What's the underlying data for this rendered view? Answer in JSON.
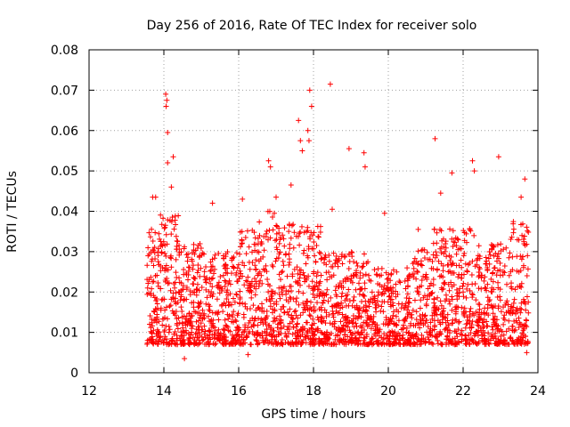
{
  "chart_data": {
    "type": "scatter",
    "title": "Day 256 of 2016, Rate Of TEC Index for receiver solo",
    "xlabel": "GPS time / hours",
    "ylabel": "ROTI / TECUs",
    "xlim": [
      12,
      24
    ],
    "ylim": [
      0,
      0.08
    ],
    "xticks": [
      "12",
      "14",
      "16",
      "18",
      "20",
      "22",
      "24"
    ],
    "yticks": [
      "0",
      "0.01",
      "0.02",
      "0.03",
      "0.04",
      "0.05",
      "0.06",
      "0.07",
      "0.08"
    ],
    "xtick_values": [
      12,
      14,
      16,
      18,
      20,
      22,
      24
    ],
    "ytick_values": [
      0,
      0.01,
      0.02,
      0.03,
      0.04,
      0.05,
      0.06,
      0.07,
      0.08
    ],
    "grid": true,
    "marker": "+",
    "series_color": "#ff0000",
    "data_range_x": [
      13.55,
      23.75
    ],
    "bulk_range_y": [
      0.005,
      0.035
    ],
    "highlights": [
      {
        "x": 14.05,
        "y": 0.069
      },
      {
        "x": 14.08,
        "y": 0.0675
      },
      {
        "x": 14.06,
        "y": 0.066
      },
      {
        "x": 14.1,
        "y": 0.0595
      },
      {
        "x": 14.1,
        "y": 0.052
      },
      {
        "x": 14.25,
        "y": 0.0535
      },
      {
        "x": 13.7,
        "y": 0.0435
      },
      {
        "x": 13.78,
        "y": 0.0435
      },
      {
        "x": 14.2,
        "y": 0.046
      },
      {
        "x": 16.1,
        "y": 0.043
      },
      {
        "x": 16.8,
        "y": 0.0525
      },
      {
        "x": 16.85,
        "y": 0.051
      },
      {
        "x": 17.4,
        "y": 0.0465
      },
      {
        "x": 17.6,
        "y": 0.0625
      },
      {
        "x": 17.65,
        "y": 0.0575
      },
      {
        "x": 17.7,
        "y": 0.055
      },
      {
        "x": 17.9,
        "y": 0.07
      },
      {
        "x": 17.95,
        "y": 0.066
      },
      {
        "x": 17.85,
        "y": 0.06
      },
      {
        "x": 17.88,
        "y": 0.0575
      },
      {
        "x": 18.45,
        "y": 0.0715
      },
      {
        "x": 18.95,
        "y": 0.0555
      },
      {
        "x": 19.35,
        "y": 0.0545
      },
      {
        "x": 19.38,
        "y": 0.051
      },
      {
        "x": 21.25,
        "y": 0.058
      },
      {
        "x": 21.7,
        "y": 0.0495
      },
      {
        "x": 22.25,
        "y": 0.0525
      },
      {
        "x": 22.3,
        "y": 0.05
      },
      {
        "x": 22.95,
        "y": 0.0535
      },
      {
        "x": 23.65,
        "y": 0.048
      },
      {
        "x": 14.55,
        "y": 0.0035
      },
      {
        "x": 16.25,
        "y": 0.0045
      },
      {
        "x": 23.7,
        "y": 0.005
      },
      {
        "x": 18.5,
        "y": 0.0405
      },
      {
        "x": 19.9,
        "y": 0.0395
      },
      {
        "x": 21.4,
        "y": 0.0445
      },
      {
        "x": 23.55,
        "y": 0.0435
      },
      {
        "x": 20.8,
        "y": 0.0355
      },
      {
        "x": 15.3,
        "y": 0.042
      },
      {
        "x": 17.0,
        "y": 0.0435
      }
    ]
  }
}
